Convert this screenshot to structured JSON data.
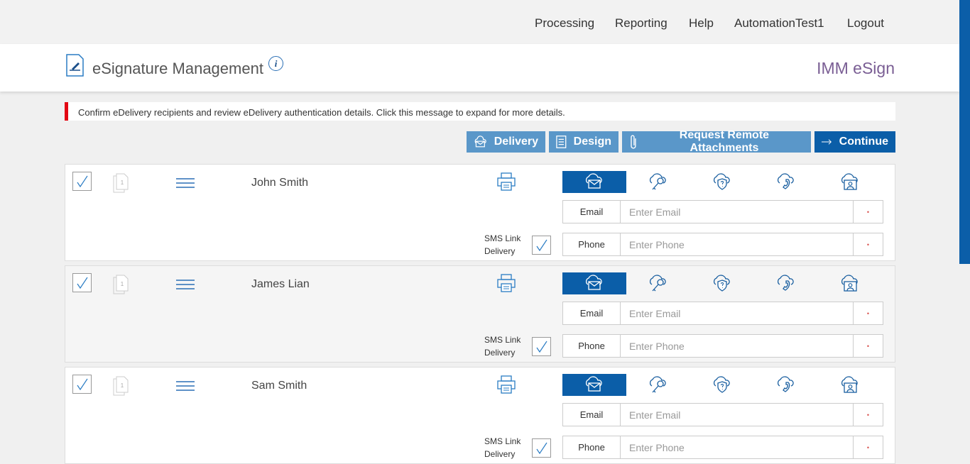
{
  "nav": [
    "Processing",
    "Reporting",
    "Help",
    "AutomationTest1",
    "Logout"
  ],
  "header": {
    "title": "eSignature Management",
    "brand": "IMM eSign",
    "info": "i"
  },
  "message": "Confirm eDelivery recipients and review eDelivery authentication details. Click this message to expand for more details.",
  "actions": {
    "delivery": "Delivery",
    "design": "Design",
    "attachments": "Request Remote Attachments",
    "continue": "Continue"
  },
  "colors": {
    "primary": "#0b5ea8",
    "secondary": "#5a97c9",
    "alert": "#e30613"
  },
  "recipients": [
    {
      "name": "John Smith",
      "checked": true,
      "sms_checked": true,
      "active_tab": "email"
    },
    {
      "name": "James Lian",
      "checked": true,
      "sms_checked": true,
      "active_tab": "email"
    },
    {
      "name": "Sam Smith",
      "checked": true,
      "sms_checked": true,
      "active_tab": "email"
    }
  ],
  "fields": {
    "email_label": "Email",
    "email_placeholder": "Enter Email",
    "phone_label": "Phone",
    "phone_placeholder": "Enter Phone",
    "required": "•",
    "sms_label_1": "SMS Link",
    "sms_label_2": "Delivery",
    "doc_count": "1"
  },
  "tabs": [
    "email-cloud-icon",
    "key-cloud-icon",
    "shield-question-cloud-icon",
    "phone-cloud-icon",
    "id-card-cloud-icon"
  ]
}
